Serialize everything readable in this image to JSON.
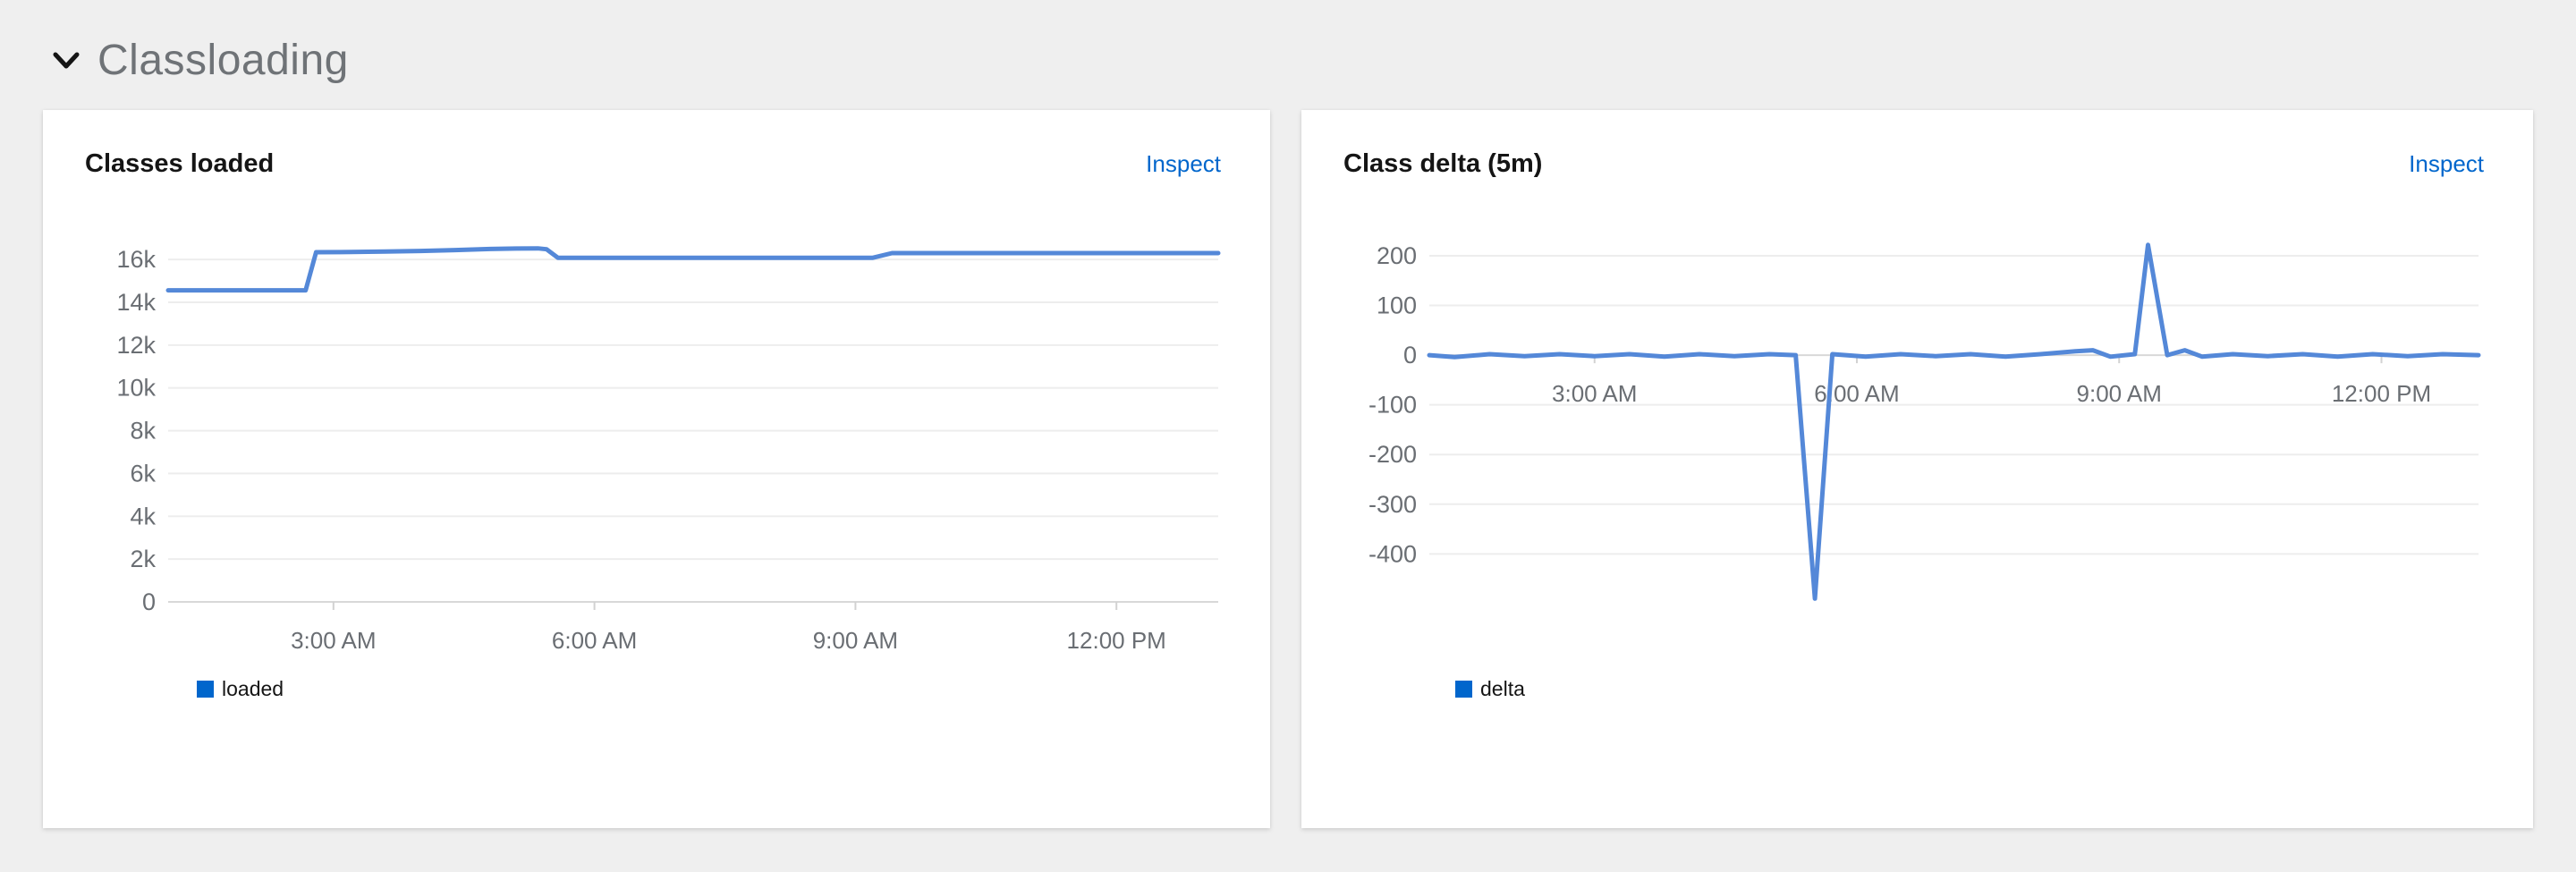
{
  "page": {
    "background": "#efefef"
  },
  "section": {
    "title": "Classloading",
    "chevron_icon": "angle-down",
    "state": "expanded"
  },
  "cards": [
    {
      "title": "Classes loaded",
      "inspect_label": "Inspect",
      "legend": {
        "label": "loaded",
        "color": "#0066cc"
      }
    },
    {
      "title": "Class delta (5m)",
      "inspect_label": "Inspect",
      "legend": {
        "label": "delta",
        "color": "#0066cc"
      }
    }
  ],
  "chart_data": [
    {
      "type": "line",
      "title": "Classes loaded",
      "xlabel": "",
      "ylabel": "",
      "grid": true,
      "legend_position": "bottom-left",
      "x_unit": "hour-of-day",
      "xlim": [
        1.1,
        13.17
      ],
      "ylim": [
        0,
        16800
      ],
      "x_ticks": [
        {
          "hour": 3,
          "label": "3:00 AM"
        },
        {
          "hour": 6,
          "label": "6:00 AM"
        },
        {
          "hour": 9,
          "label": "9:00 AM"
        },
        {
          "hour": 12,
          "label": "12:00 PM"
        }
      ],
      "y_ticks": [
        {
          "value": 16000,
          "label": "16k"
        },
        {
          "value": 14000,
          "label": "14k"
        },
        {
          "value": 12000,
          "label": "12k"
        },
        {
          "value": 10000,
          "label": "10k"
        },
        {
          "value": 8000,
          "label": "8k"
        },
        {
          "value": 6000,
          "label": "6k"
        },
        {
          "value": 4000,
          "label": "4k"
        },
        {
          "value": 2000,
          "label": "2k"
        },
        {
          "value": 0,
          "label": "0"
        }
      ],
      "series": [
        {
          "name": "loaded",
          "color": "#5488d8",
          "points": [
            [
              1.1,
              14560
            ],
            [
              1.6,
              14560
            ],
            [
              2.1,
              14560
            ],
            [
              2.68,
              14560
            ],
            [
              2.8,
              16340
            ],
            [
              3.2,
              16350
            ],
            [
              3.6,
              16370
            ],
            [
              4.0,
              16400
            ],
            [
              4.4,
              16440
            ],
            [
              4.8,
              16490
            ],
            [
              5.1,
              16510
            ],
            [
              5.35,
              16520
            ],
            [
              5.45,
              16480
            ],
            [
              5.58,
              16080
            ],
            [
              6.2,
              16080
            ],
            [
              7.0,
              16080
            ],
            [
              7.8,
              16080
            ],
            [
              8.6,
              16080
            ],
            [
              9.2,
              16080
            ],
            [
              9.42,
              16300
            ],
            [
              10.0,
              16300
            ],
            [
              10.8,
              16300
            ],
            [
              11.6,
              16300
            ],
            [
              12.4,
              16300
            ],
            [
              13.17,
              16300
            ]
          ]
        }
      ]
    },
    {
      "type": "line",
      "title": "Class delta (5m)",
      "xlabel": "",
      "ylabel": "",
      "grid": true,
      "legend_position": "bottom-left",
      "x_unit": "hour-of-day",
      "xlim": [
        1.11,
        13.11
      ],
      "ylim": [
        -520,
        245
      ],
      "x_ticks": [
        {
          "hour": 3,
          "label": "3:00 AM"
        },
        {
          "hour": 6,
          "label": "6:00 AM"
        },
        {
          "hour": 9,
          "label": "9:00 AM"
        },
        {
          "hour": 12,
          "label": "12:00 PM"
        }
      ],
      "y_ticks": [
        {
          "value": 200,
          "label": "200"
        },
        {
          "value": 100,
          "label": "100"
        },
        {
          "value": 0,
          "label": "0"
        },
        {
          "value": -100,
          "label": "-100"
        },
        {
          "value": -200,
          "label": "-200"
        },
        {
          "value": -300,
          "label": "-300"
        },
        {
          "value": -400,
          "label": "-400"
        }
      ],
      "series": [
        {
          "name": "delta",
          "color": "#5488d8",
          "points": [
            [
              1.11,
              0
            ],
            [
              1.4,
              -4
            ],
            [
              1.8,
              2
            ],
            [
              2.2,
              -2
            ],
            [
              2.6,
              2
            ],
            [
              3.0,
              -2
            ],
            [
              3.4,
              2
            ],
            [
              3.8,
              -3
            ],
            [
              4.2,
              2
            ],
            [
              4.6,
              -2
            ],
            [
              5.0,
              2
            ],
            [
              5.3,
              0
            ],
            [
              5.52,
              -490
            ],
            [
              5.72,
              2
            ],
            [
              6.1,
              -3
            ],
            [
              6.5,
              2
            ],
            [
              6.9,
              -2
            ],
            [
              7.3,
              2
            ],
            [
              7.7,
              -3
            ],
            [
              8.1,
              2
            ],
            [
              8.5,
              8
            ],
            [
              8.7,
              10
            ],
            [
              8.9,
              -3
            ],
            [
              9.18,
              2
            ],
            [
              9.33,
              222
            ],
            [
              9.55,
              0
            ],
            [
              9.75,
              10
            ],
            [
              9.95,
              -3
            ],
            [
              10.3,
              2
            ],
            [
              10.7,
              -2
            ],
            [
              11.1,
              2
            ],
            [
              11.5,
              -3
            ],
            [
              11.9,
              2
            ],
            [
              12.3,
              -2
            ],
            [
              12.7,
              2
            ],
            [
              13.11,
              0
            ]
          ]
        }
      ]
    }
  ]
}
